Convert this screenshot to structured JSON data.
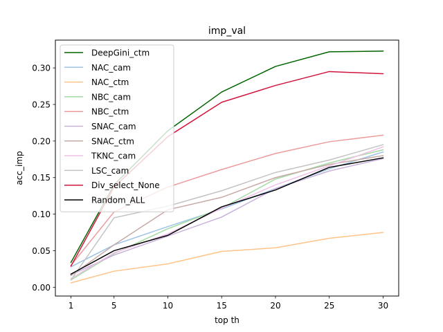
{
  "chart_data": {
    "type": "line",
    "title": "imp_val",
    "xlabel": "top th",
    "ylabel": "acc_imp",
    "x": [
      1,
      5,
      10,
      15,
      20,
      25,
      30
    ],
    "x_tick_labels": [
      "1",
      "5",
      "10",
      "15",
      "20",
      "25",
      "30"
    ],
    "xlim": [
      -0.45,
      31.45
    ],
    "ylim": [
      -0.012,
      0.338
    ],
    "y_ticks": [
      0.0,
      0.05,
      0.1,
      0.15,
      0.2,
      0.25,
      0.3
    ],
    "y_tick_labels": [
      "0.00",
      "0.05",
      "0.10",
      "0.15",
      "0.20",
      "0.25",
      "0.30"
    ],
    "grid": false,
    "legend_position": "top-left",
    "series": [
      {
        "name": "DeepGini_ctm",
        "color": "#006400",
        "values": [
          0.034,
          0.14,
          0.214,
          0.267,
          0.302,
          0.322,
          0.323
        ]
      },
      {
        "name": "NAC_cam",
        "color": "#9dc3e6",
        "values": [
          0.028,
          0.058,
          0.083,
          0.107,
          0.135,
          0.162,
          0.185
        ]
      },
      {
        "name": "NAC_ctm",
        "color": "#ffc388",
        "values": [
          0.006,
          0.022,
          0.032,
          0.049,
          0.054,
          0.067,
          0.075
        ]
      },
      {
        "name": "NBC_cam",
        "color": "#a3dba3",
        "values": [
          0.01,
          0.046,
          0.08,
          0.108,
          0.148,
          0.17,
          0.188
        ]
      },
      {
        "name": "NBC_ctm",
        "color": "#ec9a9a",
        "values": [
          0.03,
          0.103,
          0.137,
          0.161,
          0.183,
          0.199,
          0.208
        ]
      },
      {
        "name": "SNAC_cam",
        "color": "#c8b0dc",
        "values": [
          0.017,
          0.044,
          0.07,
          0.096,
          0.135,
          0.159,
          0.176
        ]
      },
      {
        "name": "SNAC_ctm",
        "color": "#c7a9a5",
        "values": [
          0.016,
          0.058,
          0.106,
          0.123,
          0.15,
          0.168,
          0.18
        ]
      },
      {
        "name": "TKNC_cam",
        "color": "#f0bfe8",
        "values": [
          0.012,
          0.047,
          0.073,
          0.108,
          0.14,
          0.166,
          0.192
        ]
      },
      {
        "name": "LSC_cam",
        "color": "#c3c3c3",
        "values": [
          0.01,
          0.095,
          0.111,
          0.132,
          0.157,
          0.174,
          0.195
        ]
      },
      {
        "name": "Div_select_None",
        "color": "#d2143c",
        "values": [
          0.029,
          0.137,
          0.206,
          0.253,
          0.276,
          0.295,
          0.292
        ]
      },
      {
        "name": "Random_ALL",
        "color": "#000000",
        "values": [
          0.018,
          0.05,
          0.071,
          0.11,
          0.133,
          0.164,
          0.177
        ]
      }
    ]
  }
}
